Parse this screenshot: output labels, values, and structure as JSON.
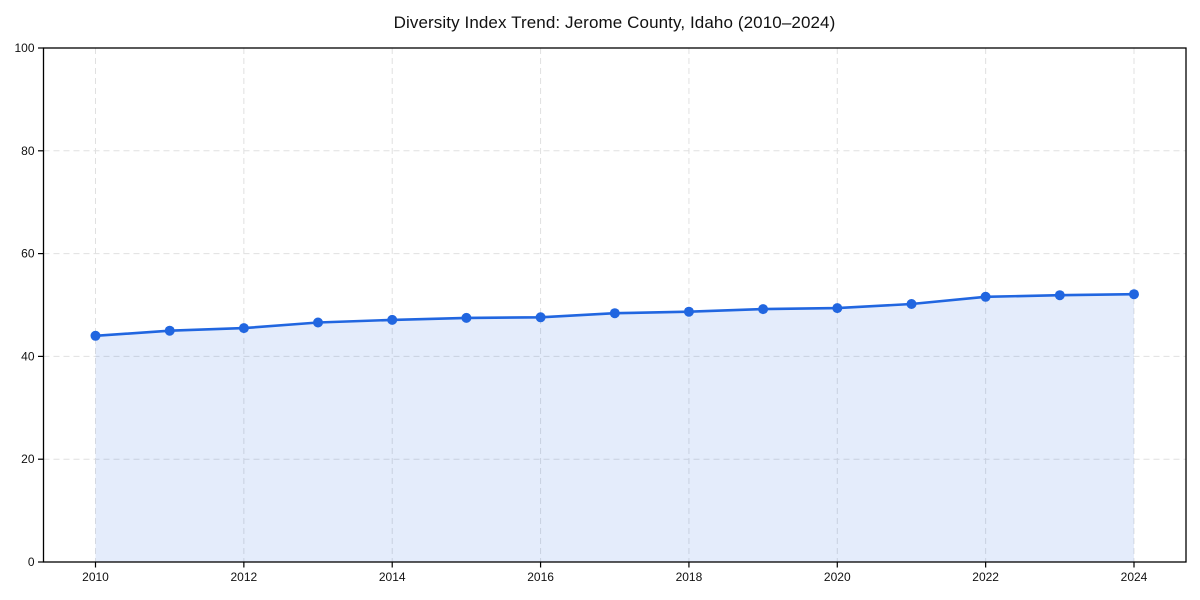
{
  "page": {
    "background": "#ffffff"
  },
  "chart_data": {
    "type": "line",
    "title": "Diversity Index Trend: Jerome County, Idaho (2010–2024)",
    "x": [
      2010,
      2011,
      2012,
      2013,
      2014,
      2015,
      2016,
      2017,
      2018,
      2019,
      2020,
      2021,
      2022,
      2023,
      2024
    ],
    "series": [
      {
        "name": "Diversity Index",
        "values": [
          44.0,
          45.0,
          45.5,
          46.6,
          47.1,
          47.5,
          47.6,
          48.4,
          48.7,
          49.2,
          49.4,
          50.2,
          51.6,
          51.9,
          52.1
        ]
      }
    ],
    "xlabel": "",
    "ylabel": "",
    "ylim": [
      0,
      100
    ],
    "yticks": [
      0,
      20,
      40,
      60,
      80,
      100
    ],
    "xticks": [
      2010,
      2012,
      2014,
      2016,
      2018,
      2020,
      2022,
      2024
    ],
    "grid": true,
    "grid_style": "dashed",
    "legend_position": "none",
    "area_fill": true,
    "marker": "circle",
    "colors": {
      "line": "#2166e0",
      "marker": "#2166e0",
      "fill": "rgba(33,102,224,0.12)",
      "grid": "#e0e0e0",
      "spine": "#000000",
      "text": "#111111"
    }
  }
}
